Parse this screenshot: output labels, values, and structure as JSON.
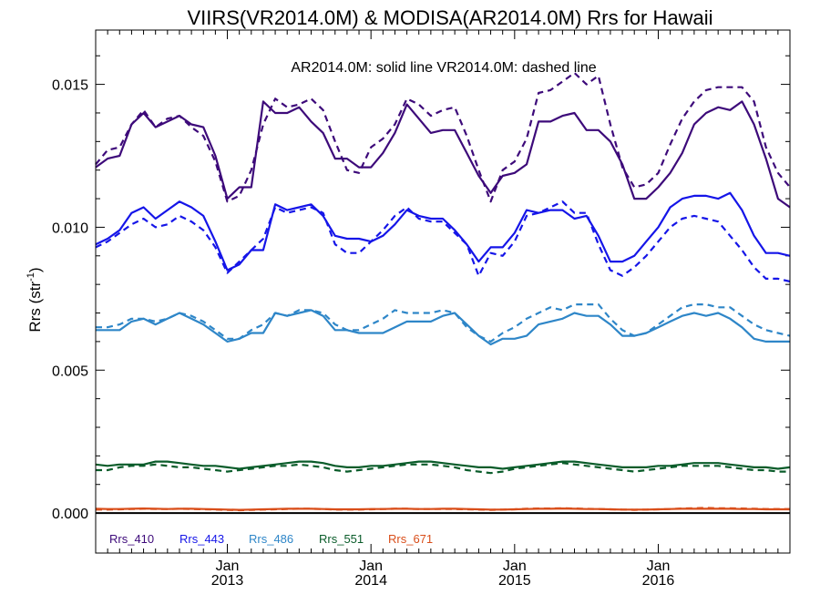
{
  "chart_data": {
    "type": "line",
    "title": "VIIRS(VR2014.0M) & MODISA(AR2014.0M)  Rrs for Hawaii",
    "annotation": "AR2014.0M: solid line   VR2014.0M: dashed line",
    "ylabel": "Rrs (str",
    "ylabel_sup": "-1",
    "ylabel_close": ")",
    "ylim": [
      -0.0014,
      0.0169
    ],
    "xlim": [
      0,
      58
    ],
    "x_start_month": "2012-02",
    "y_ticks": [
      0.0,
      0.005,
      0.01,
      0.015
    ],
    "y_tick_labels": [
      "0.000",
      "0.005",
      "0.010",
      "0.015"
    ],
    "x_ticks": [
      {
        "x": 11,
        "month": "Jan",
        "year": "2013"
      },
      {
        "x": 23,
        "month": "Jan",
        "year": "2014"
      },
      {
        "x": 35,
        "month": "Jan",
        "year": "2015"
      },
      {
        "x": 47,
        "month": "Jan",
        "year": "2016"
      }
    ],
    "zero_line": 0.0,
    "legend_position": "bottom-left",
    "series": [
      {
        "name": "Rrs_410",
        "sensor": "AR2014.0M",
        "style": "solid",
        "color": "#3d0a7a",
        "values": [
          0.0121,
          0.0124,
          0.0125,
          0.0136,
          0.014,
          0.0135,
          0.0137,
          0.0139,
          0.0136,
          0.0135,
          0.0125,
          0.011,
          0.0114,
          0.0114,
          0.0144,
          0.014,
          0.014,
          0.0142,
          0.0137,
          0.0133,
          0.0124,
          0.0124,
          0.0121,
          0.0121,
          0.0126,
          0.0133,
          0.0143,
          0.0138,
          0.0133,
          0.0134,
          0.0134,
          0.0126,
          0.0118,
          0.0112,
          0.0118,
          0.0119,
          0.0122,
          0.0137,
          0.0137,
          0.0139,
          0.014,
          0.0134,
          0.0134,
          0.013,
          0.0122,
          0.011,
          0.011,
          0.0114,
          0.0119,
          0.0126,
          0.0136,
          0.014,
          0.0142,
          0.0141,
          0.0144,
          0.0136,
          0.0124,
          0.011,
          0.0107
        ]
      },
      {
        "name": "Rrs_410",
        "sensor": "VR2014.0M",
        "style": "dashed",
        "color": "#3d0a7a",
        "values": [
          0.0122,
          0.0127,
          0.0128,
          0.0136,
          0.0141,
          0.0135,
          0.0138,
          0.0139,
          0.0135,
          0.0132,
          0.0123,
          0.0109,
          0.0111,
          0.012,
          0.0136,
          0.0145,
          0.0142,
          0.0143,
          0.0145,
          0.0141,
          0.013,
          0.012,
          0.0119,
          0.0128,
          0.0131,
          0.0136,
          0.0145,
          0.0143,
          0.0139,
          0.0141,
          0.0142,
          0.0132,
          0.012,
          0.0109,
          0.012,
          0.0123,
          0.0131,
          0.0147,
          0.0148,
          0.0151,
          0.0154,
          0.015,
          0.0153,
          0.0136,
          0.0121,
          0.0114,
          0.0115,
          0.0119,
          0.0129,
          0.0138,
          0.0144,
          0.0148,
          0.0149,
          0.0149,
          0.0149,
          0.0144,
          0.0128,
          0.0119,
          0.0114
        ]
      },
      {
        "name": "Rrs_443",
        "sensor": "AR2014.0M",
        "style": "solid",
        "color": "#1515e8",
        "values": [
          0.0094,
          0.0096,
          0.0099,
          0.0105,
          0.0107,
          0.0103,
          0.0106,
          0.0109,
          0.0107,
          0.0104,
          0.0095,
          0.0085,
          0.0087,
          0.0092,
          0.0092,
          0.0108,
          0.0106,
          0.0107,
          0.0108,
          0.0104,
          0.0097,
          0.0096,
          0.0096,
          0.0095,
          0.0097,
          0.0101,
          0.0106,
          0.0104,
          0.0103,
          0.0103,
          0.0099,
          0.0094,
          0.0088,
          0.0093,
          0.0093,
          0.0098,
          0.0106,
          0.0105,
          0.0106,
          0.0106,
          0.0103,
          0.0104,
          0.0097,
          0.0088,
          0.0088,
          0.009,
          0.0095,
          0.01,
          0.0107,
          0.011,
          0.0111,
          0.0111,
          0.011,
          0.0112,
          0.0106,
          0.0097,
          0.0091,
          0.0091,
          0.009
        ]
      },
      {
        "name": "Rrs_443",
        "sensor": "VR2014.0M",
        "style": "dashed",
        "color": "#1515e8",
        "values": [
          0.0093,
          0.0095,
          0.0098,
          0.0101,
          0.0103,
          0.01,
          0.0101,
          0.0104,
          0.0102,
          0.0099,
          0.0093,
          0.0084,
          0.0088,
          0.0092,
          0.0096,
          0.0107,
          0.0105,
          0.0106,
          0.0107,
          0.0105,
          0.0094,
          0.0091,
          0.0091,
          0.0095,
          0.0099,
          0.0104,
          0.0107,
          0.0103,
          0.0102,
          0.0102,
          0.0098,
          0.0094,
          0.0083,
          0.0091,
          0.009,
          0.0095,
          0.0104,
          0.0105,
          0.0107,
          0.0109,
          0.0105,
          0.0105,
          0.0094,
          0.0085,
          0.0083,
          0.0086,
          0.009,
          0.0095,
          0.01,
          0.0103,
          0.0104,
          0.0103,
          0.0102,
          0.0097,
          0.0092,
          0.0086,
          0.0082,
          0.0082,
          0.0081
        ]
      },
      {
        "name": "Rrs_486",
        "sensor": "AR2014.0M",
        "style": "solid",
        "color": "#2e86c8",
        "values": [
          0.0064,
          0.0064,
          0.0064,
          0.0067,
          0.0068,
          0.0066,
          0.0068,
          0.007,
          0.0068,
          0.0066,
          0.0063,
          0.006,
          0.0061,
          0.0063,
          0.0063,
          0.007,
          0.0069,
          0.007,
          0.0071,
          0.0069,
          0.0064,
          0.0064,
          0.0063,
          0.0063,
          0.0063,
          0.0065,
          0.0067,
          0.0067,
          0.0067,
          0.0069,
          0.007,
          0.0066,
          0.0062,
          0.0059,
          0.0061,
          0.0061,
          0.0062,
          0.0066,
          0.0067,
          0.0068,
          0.007,
          0.0069,
          0.0069,
          0.0066,
          0.0062,
          0.0062,
          0.0063,
          0.0065,
          0.0067,
          0.0069,
          0.007,
          0.0069,
          0.007,
          0.0068,
          0.0065,
          0.0061,
          0.006,
          0.006,
          0.006
        ]
      },
      {
        "name": "Rrs_486",
        "sensor": "VR2014.0M",
        "style": "dashed",
        "color": "#2e86c8",
        "values": [
          0.0065,
          0.0065,
          0.0066,
          0.0068,
          0.0068,
          0.0067,
          0.0068,
          0.007,
          0.0069,
          0.0067,
          0.0064,
          0.0061,
          0.0061,
          0.0064,
          0.0066,
          0.007,
          0.0069,
          0.0071,
          0.0071,
          0.007,
          0.0066,
          0.0064,
          0.0064,
          0.0066,
          0.0068,
          0.0071,
          0.007,
          0.007,
          0.007,
          0.0071,
          0.007,
          0.0065,
          0.0062,
          0.006,
          0.0063,
          0.0065,
          0.0068,
          0.007,
          0.0072,
          0.0071,
          0.0073,
          0.0073,
          0.0073,
          0.0068,
          0.0064,
          0.0062,
          0.0063,
          0.0066,
          0.0069,
          0.0072,
          0.0073,
          0.0073,
          0.0072,
          0.0072,
          0.0069,
          0.0066,
          0.0064,
          0.0063,
          0.0062
        ]
      },
      {
        "name": "Rrs_551",
        "sensor": "AR2014.0M",
        "style": "solid",
        "color": "#0a5c2a",
        "values": [
          0.0017,
          0.00165,
          0.0017,
          0.0017,
          0.0017,
          0.0018,
          0.0018,
          0.00175,
          0.0017,
          0.00165,
          0.00165,
          0.0016,
          0.00155,
          0.0016,
          0.00165,
          0.0017,
          0.00175,
          0.0018,
          0.0018,
          0.00175,
          0.00165,
          0.0016,
          0.0016,
          0.00165,
          0.00165,
          0.0017,
          0.00175,
          0.0018,
          0.0018,
          0.00175,
          0.0017,
          0.00165,
          0.0016,
          0.0016,
          0.00155,
          0.0016,
          0.00165,
          0.0017,
          0.00175,
          0.0018,
          0.0018,
          0.00175,
          0.0017,
          0.00165,
          0.0016,
          0.0016,
          0.0016,
          0.00165,
          0.00165,
          0.0017,
          0.00175,
          0.00175,
          0.00175,
          0.0017,
          0.00165,
          0.0016,
          0.0016,
          0.00155,
          0.0016
        ]
      },
      {
        "name": "Rrs_551",
        "sensor": "VR2014.0M",
        "style": "dashed",
        "color": "#0a5c2a",
        "values": [
          0.0015,
          0.0015,
          0.0016,
          0.00165,
          0.00165,
          0.0017,
          0.00165,
          0.0016,
          0.0016,
          0.00155,
          0.0015,
          0.00145,
          0.0015,
          0.00155,
          0.0016,
          0.00165,
          0.00165,
          0.0017,
          0.00165,
          0.0016,
          0.0015,
          0.00145,
          0.0015,
          0.00155,
          0.0016,
          0.00165,
          0.0017,
          0.0017,
          0.0017,
          0.00165,
          0.0016,
          0.0015,
          0.00145,
          0.0014,
          0.00145,
          0.00155,
          0.0016,
          0.00165,
          0.0017,
          0.00175,
          0.0017,
          0.00165,
          0.0016,
          0.00155,
          0.0015,
          0.00145,
          0.0015,
          0.00155,
          0.0016,
          0.00165,
          0.00165,
          0.00165,
          0.00165,
          0.0016,
          0.00155,
          0.0015,
          0.0015,
          0.00145,
          0.00145
        ]
      },
      {
        "name": "Rrs_671",
        "sensor": "AR2014.0M",
        "style": "solid",
        "color": "#d94e1a",
        "values": [
          0.00015,
          0.00014,
          0.00014,
          0.00015,
          0.00016,
          0.00015,
          0.00014,
          0.00015,
          0.00015,
          0.00014,
          0.00013,
          0.00012,
          0.00011,
          0.00012,
          0.00013,
          0.00014,
          0.00015,
          0.00015,
          0.00015,
          0.00014,
          0.00013,
          0.00013,
          0.00013,
          0.00014,
          0.00014,
          0.00015,
          0.00015,
          0.00014,
          0.00014,
          0.00015,
          0.00015,
          0.00014,
          0.00013,
          0.00012,
          0.00012,
          0.00013,
          0.00014,
          0.00015,
          0.00015,
          0.00016,
          0.00015,
          0.00014,
          0.00014,
          0.00013,
          0.00012,
          0.00012,
          0.00012,
          0.00013,
          0.00014,
          0.00015,
          0.00015,
          0.00015,
          0.00015,
          0.00015,
          0.00014,
          0.00014,
          0.00013,
          0.00013,
          0.00013
        ]
      },
      {
        "name": "Rrs_671",
        "sensor": "VR2014.0M",
        "style": "dashed",
        "color": "#d94e1a",
        "values": [
          0.00012,
          0.00012,
          0.00013,
          0.00014,
          0.00015,
          0.00014,
          0.00014,
          0.00015,
          0.00014,
          0.00013,
          0.00012,
          0.00011,
          0.0001,
          0.00011,
          0.00012,
          0.00013,
          0.00014,
          0.00015,
          0.00015,
          0.00014,
          0.00012,
          0.00012,
          0.00012,
          0.00013,
          0.00014,
          0.00015,
          0.00015,
          0.00014,
          0.00014,
          0.00014,
          0.00014,
          0.00013,
          0.00012,
          0.00011,
          0.00012,
          0.00013,
          0.00015,
          0.00016,
          0.00016,
          0.00017,
          0.00016,
          0.00015,
          0.00014,
          0.00013,
          0.00012,
          0.00011,
          0.00012,
          0.00013,
          0.00014,
          0.00016,
          0.00017,
          0.00018,
          0.00017,
          0.00017,
          0.00016,
          0.00015,
          0.00014,
          0.00014,
          0.00014
        ]
      }
    ],
    "legend": [
      {
        "label": "Rrs_410",
        "color": "#3d0a7a"
      },
      {
        "label": "Rrs_443",
        "color": "#1515e8"
      },
      {
        "label": "Rrs_486",
        "color": "#2e86c8"
      },
      {
        "label": "Rrs_551",
        "color": "#0a5c2a"
      },
      {
        "label": "Rrs_671",
        "color": "#d94e1a"
      }
    ]
  }
}
